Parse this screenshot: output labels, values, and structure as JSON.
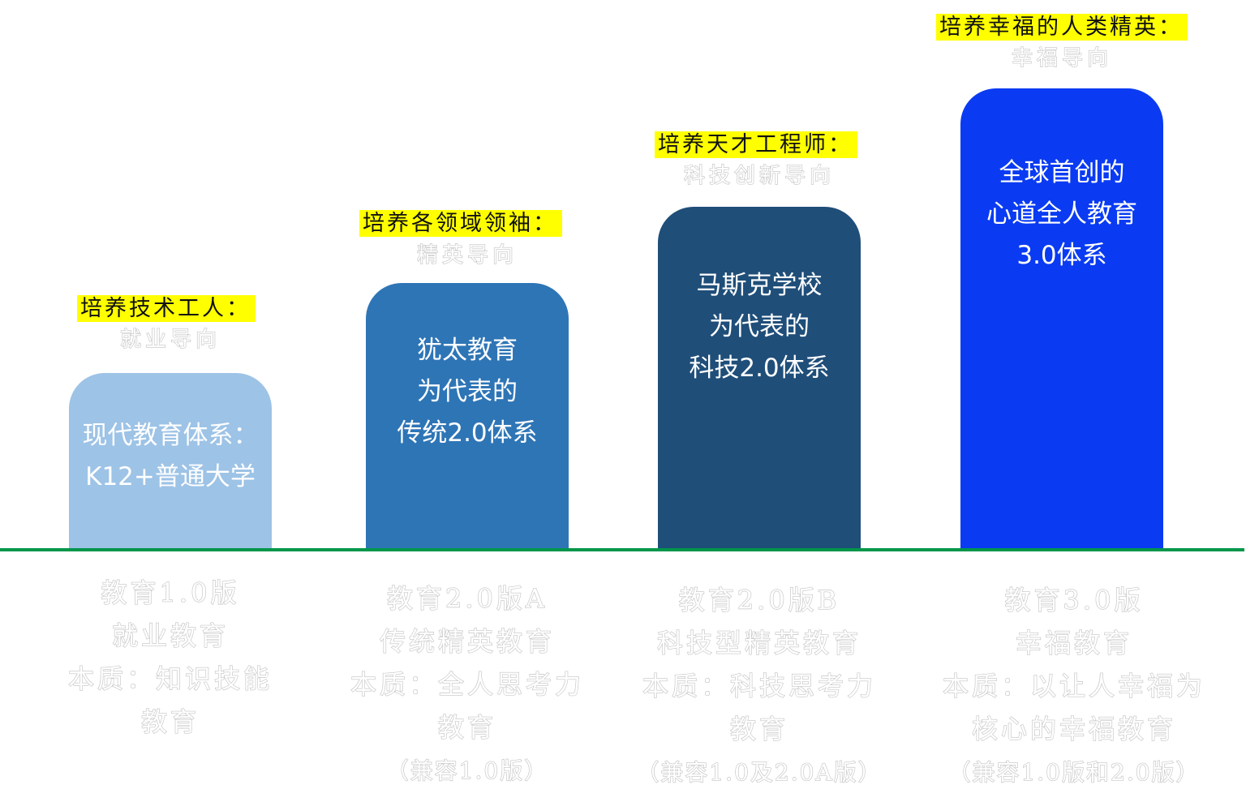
{
  "columns": [
    {
      "heading": "培养技术工人：",
      "subheading": "就业导向",
      "bar_lines": [
        "现代教育体系：",
        "K12+普通大学"
      ],
      "bar_color": "#9dc3e6",
      "desc_lines": [
        "教育1.0版",
        "就业教育",
        "本质：知识技能",
        "教育"
      ]
    },
    {
      "heading": "培养各领域领袖：",
      "subheading": "精英导向",
      "bar_lines": [
        "犹太教育",
        "为代表的",
        "传统2.0体系"
      ],
      "bar_color": "#2e75b6",
      "desc_lines": [
        "教育2.0版A",
        "传统精英教育",
        "本质：全人思考力",
        "教育",
        "（兼容1.0版）"
      ]
    },
    {
      "heading": "培养天才工程师：",
      "subheading": "科技创新导向",
      "bar_lines": [
        "马斯克学校",
        "为代表的",
        "科技2.0体系"
      ],
      "bar_color": "#1f4e79",
      "desc_lines": [
        "教育2.0版B",
        "科技型精英教育",
        "本质：科技思考力",
        "教育",
        "（兼容1.0及2.0A版）"
      ]
    },
    {
      "heading": "培养幸福的人类精英：",
      "subheading": "幸福导向",
      "bar_lines": [
        "全球首创的",
        "心道全人教育",
        "3.0体系"
      ],
      "bar_color": "#0a3bf2",
      "desc_lines": [
        "教育3.0版",
        "幸福教育",
        "本质：以让人幸福为",
        "核心的幸福教育",
        "（兼容1.0版和2.0版）"
      ]
    }
  ],
  "colors": {
    "highlight": "#ffff00",
    "baseline": "#00964a",
    "outline_text": "#c4c4c4"
  }
}
